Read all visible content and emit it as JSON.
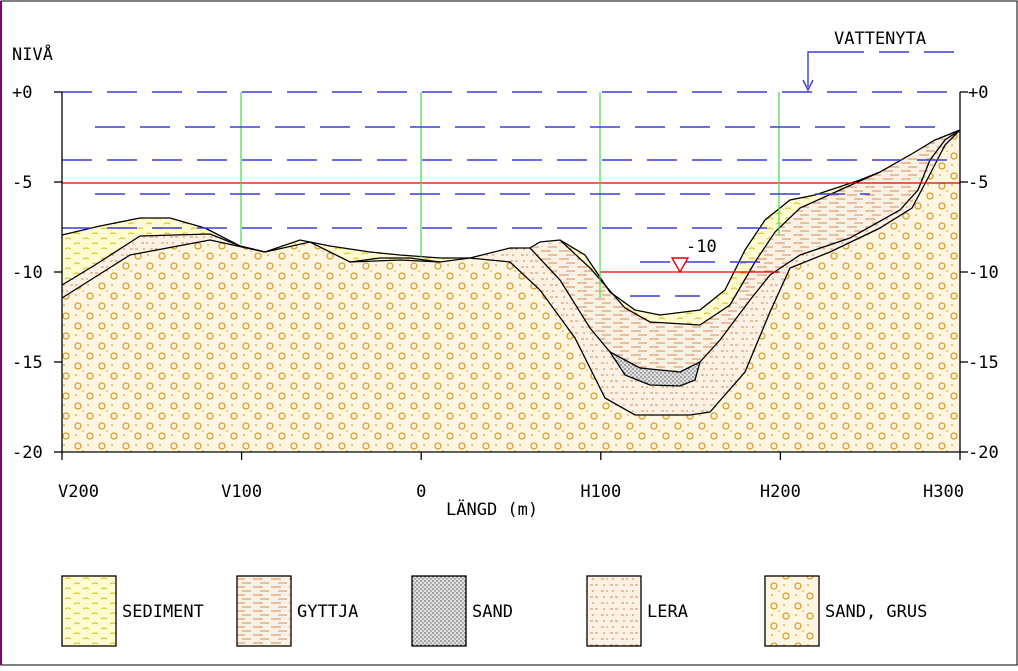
{
  "labels": {
    "y_axis": "NIVÅ",
    "x_axis": "LÄNGD (m)",
    "water_surface": "VATTENYTA",
    "depth_marker": "-10"
  },
  "y_ticks": [
    "+0",
    "-5",
    "-10",
    "-15",
    "-20"
  ],
  "y_tick_values": [
    0,
    -5,
    -10,
    -15,
    -20
  ],
  "x_ticks": [
    "V200",
    "V100",
    "0",
    "H100",
    "H200",
    "H300"
  ],
  "x_tick_values": [
    -200,
    -100,
    0,
    100,
    200,
    300
  ],
  "x_range": [
    -200,
    300
  ],
  "y_range": [
    -20,
    0
  ],
  "legend": [
    {
      "key": "sediment",
      "label": "SEDIMENT"
    },
    {
      "key": "gyttja",
      "label": "GYTTJA"
    },
    {
      "key": "sand",
      "label": "SAND"
    },
    {
      "key": "lera",
      "label": "LERA"
    },
    {
      "key": "sandgrus",
      "label": "SAND, GRUS"
    }
  ],
  "colors": {
    "frame": "#000000",
    "water_dash": "#3b3bdc",
    "level_line": "#e00000",
    "station_line": "#44dd44",
    "sediment_fill": "#fffbd0",
    "sediment_mark": "#d8cc30",
    "gyttja_fill": "#fdf1e4",
    "gyttja_mark": "#d09060",
    "sandgrus_fill": "#fff6e2",
    "sandgrus_mark": "#d8a030",
    "page_border": "#800080"
  }
}
